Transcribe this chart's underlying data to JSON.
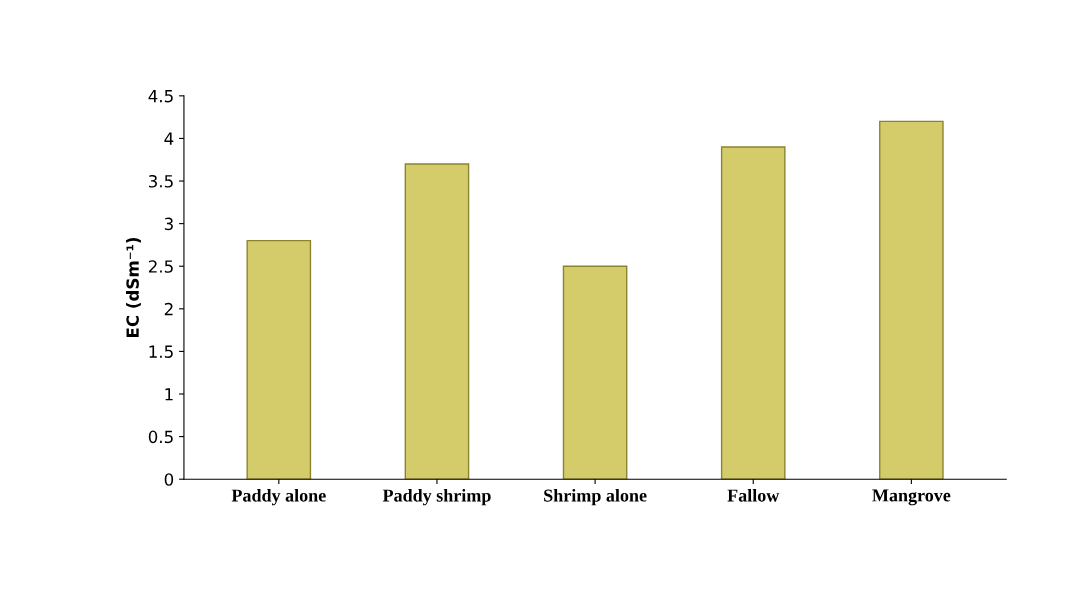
{
  "chart_data": {
    "type": "bar",
    "categories": [
      "Paddy alone",
      "Paddy shrimp",
      "Shrimp alone",
      "Fallow",
      "Mangrove"
    ],
    "values": [
      2.8,
      3.7,
      2.5,
      3.9,
      4.2
    ],
    "color": "#d4cc6a",
    "ylabel": "EC (dSm⁻¹)",
    "ylim": [
      0,
      4.5
    ],
    "yticks": [
      0,
      0.5,
      1,
      1.5,
      2,
      2.5,
      3,
      3.5,
      4,
      4.5
    ],
    "grid": false
  }
}
